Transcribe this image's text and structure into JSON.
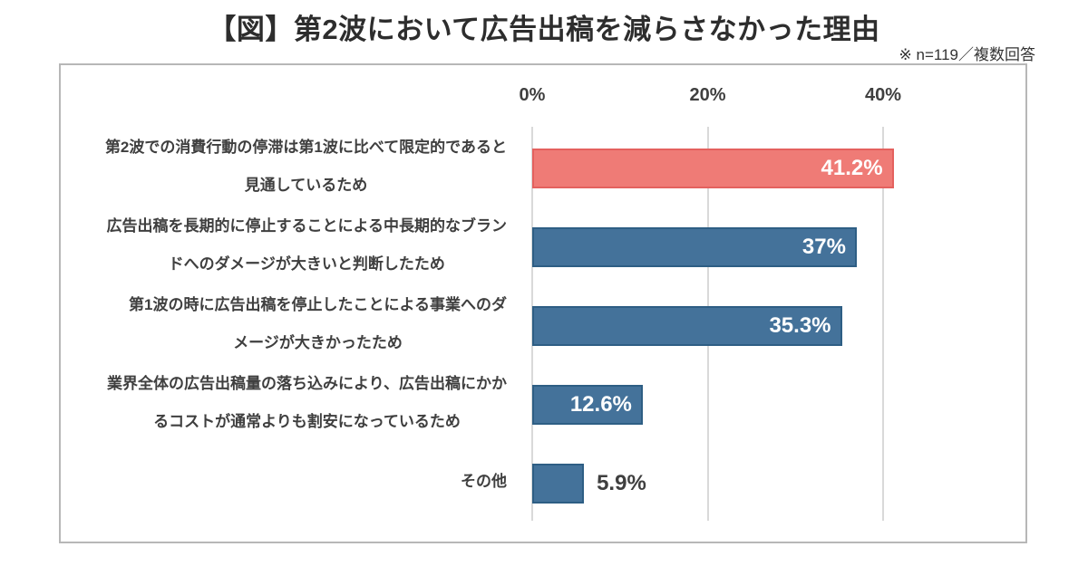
{
  "chart_data": {
    "type": "bar",
    "orientation": "horizontal",
    "title": "【図】第2波において広告出稿を減らさなかった理由",
    "note": "※ n=119／複数回答",
    "categories": [
      "第2波での消費行動の停滞は第1波に比べて限定的であると\n見通しているため",
      "広告出稿を長期的に停止することによる中長期的なブラン\nドへのダメージが大きいと判断したため",
      "第1波の時に広告出稿を停止したことによる事業へのダ\nメージが大きかったため",
      "業界全体の広告出稿量の落ち込みにより、広告出稿にかか\nるコストが通常よりも割安になっているため",
      "その他"
    ],
    "values": [
      41.2,
      37,
      35.3,
      12.6,
      5.9
    ],
    "value_labels": [
      "41.2%",
      "37%",
      "35.3%",
      "12.6%",
      "5.9%"
    ],
    "value_label_inside": [
      true,
      true,
      true,
      true,
      false
    ],
    "bar_colors": [
      "#EF7B76",
      "#44729A",
      "#44729A",
      "#44729A",
      "#44729A"
    ],
    "bar_border_colors": [
      "#E4615E",
      "#2E5E84",
      "#2E5E84",
      "#2E5E84",
      "#2E5E84"
    ],
    "x_ticks": [
      {
        "label": "0%",
        "value": 0
      },
      {
        "label": "20%",
        "value": 20
      },
      {
        "label": "40%",
        "value": 40
      }
    ],
    "xlim": [
      0,
      56
    ],
    "grid": true,
    "legend": false,
    "highlight_color": "#EF7B76",
    "base_color": "#44729A",
    "gridline_color": "#D9D9D9"
  }
}
